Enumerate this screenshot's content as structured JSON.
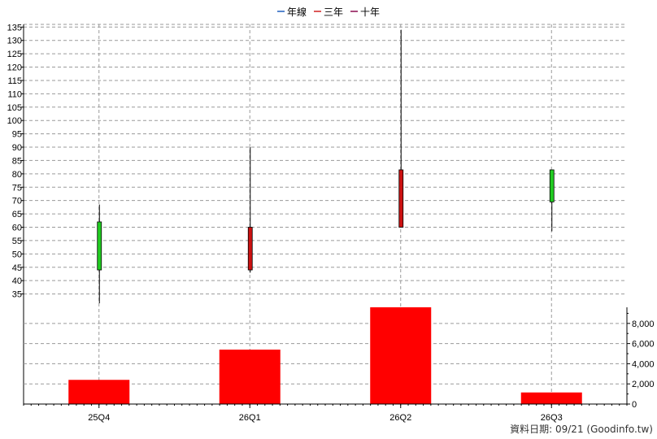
{
  "legend": [
    {
      "label": "年線",
      "color": "#1f5fbf"
    },
    {
      "label": "三年",
      "color": "#d02020"
    },
    {
      "label": "十年",
      "color": "#8b0a50"
    }
  ],
  "source_note": "資料日期: 09/21  (Goodinfo.tw)",
  "colors": {
    "up": "#22cc22",
    "down": "#cc1111",
    "volume": "#ff0000",
    "grid": "#9a9a9a"
  },
  "chart_data": [
    {
      "type": "candlestick",
      "categories": [
        "25Q4",
        "26Q1",
        "26Q2",
        "26Q3"
      ],
      "series": [
        {
          "category": "25Q4",
          "open": 44,
          "high": 68.5,
          "low": 31.5,
          "close": 62
        },
        {
          "category": "26Q1",
          "open": 60,
          "high": 90,
          "low": 43,
          "close": 44
        },
        {
          "category": "26Q2",
          "open": 81.5,
          "high": 134,
          "low": 60,
          "close": 60
        },
        {
          "category": "26Q3",
          "open": 69.5,
          "high": 81.5,
          "low": 58.5,
          "close": 81.5
        }
      ],
      "ylim": [
        30,
        136
      ],
      "yticks": [
        35,
        40,
        45,
        50,
        55,
        60,
        65,
        70,
        75,
        80,
        85,
        90,
        95,
        100,
        105,
        110,
        115,
        120,
        125,
        130,
        135
      ],
      "grid": true,
      "legend_position": "top-center"
    },
    {
      "type": "bar",
      "categories": [
        "25Q4",
        "26Q1",
        "26Q2",
        "26Q3"
      ],
      "values": [
        2400,
        5400,
        9600,
        1150
      ],
      "ylim": [
        0,
        9600
      ],
      "yticks": [
        0,
        2000,
        4000,
        6000,
        8000
      ],
      "ytick_labels": [
        "0",
        "2,000",
        "4,000",
        "6,000",
        "8,000"
      ],
      "grid": true
    }
  ]
}
